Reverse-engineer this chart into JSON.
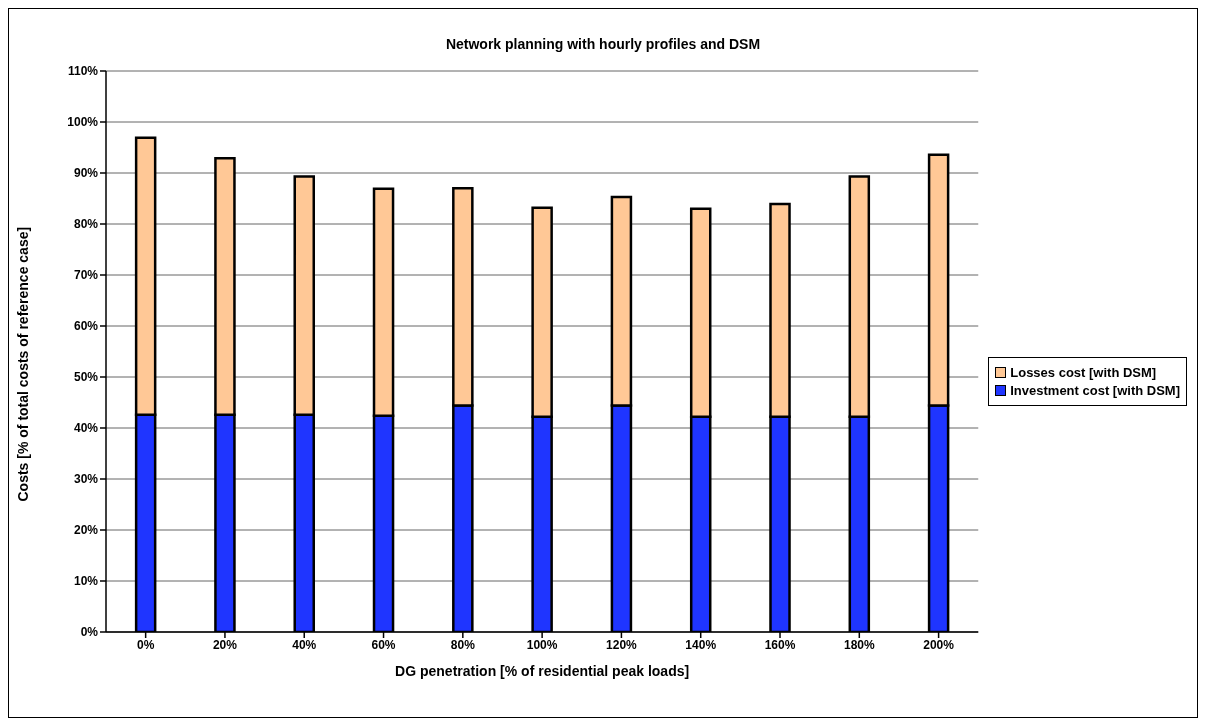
{
  "chart_data": {
    "type": "bar",
    "title": "Network planning with hourly profiles and DSM",
    "xlabel": "DG penetration [% of residential peak loads]",
    "ylabel": "Costs [% of total costs of reference case]",
    "categories": [
      "0%",
      "20%",
      "40%",
      "60%",
      "80%",
      "100%",
      "120%",
      "140%",
      "160%",
      "180%",
      "200%"
    ],
    "stacked": true,
    "series": [
      {
        "name": "Investment cost [with DSM]",
        "color": "#1f35ff",
        "values": [
          42.6,
          42.6,
          42.6,
          42.4,
          44.4,
          42.2,
          44.4,
          42.2,
          42.2,
          42.2,
          44.4
        ]
      },
      {
        "name": "Losses cost [with DSM]",
        "color": "#ffc896",
        "values": [
          54.3,
          50.3,
          46.7,
          44.5,
          42.6,
          41.0,
          40.9,
          40.8,
          41.7,
          47.1,
          49.2
        ]
      }
    ],
    "ylim": [
      0,
      110
    ],
    "yticks": [
      {
        "value": 0,
        "label": "0%"
      },
      {
        "value": 10,
        "label": "10%"
      },
      {
        "value": 20,
        "label": "20%"
      },
      {
        "value": 30,
        "label": "30%"
      },
      {
        "value": 40,
        "label": "40%"
      },
      {
        "value": 50,
        "label": "50%"
      },
      {
        "value": 60,
        "label": "60%"
      },
      {
        "value": 70,
        "label": "70%"
      },
      {
        "value": 80,
        "label": "80%"
      },
      {
        "value": 90,
        "label": "90%"
      },
      {
        "value": 100,
        "label": "100%"
      },
      {
        "value": 110,
        "label": "110%"
      }
    ],
    "grid": "y",
    "legend": "right"
  }
}
